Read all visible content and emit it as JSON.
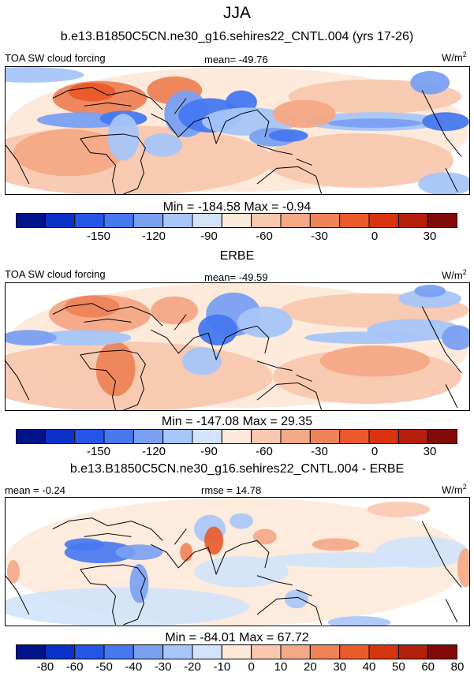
{
  "season": "JJA",
  "panels": [
    {
      "heading": "b.e13.B1850C5CN.ne30_g16.sehires22_CNTL.004 (yrs 17-26)",
      "left_label": "TOA SW cloud forcing",
      "center_label": "mean= -49.76",
      "units": "W/m",
      "units_sup": "2",
      "minmax": "Min = -184.58 Max =  -0.94"
    },
    {
      "heading": "ERBE",
      "left_label": "TOA SW cloud forcing",
      "center_label": "mean= -49.59",
      "units": "W/m",
      "units_sup": "2",
      "minmax": "Min = -147.08 Max =  29.35"
    },
    {
      "heading": "b.e13.B1850C5CN.ne30_g16.sehires22_CNTL.004 - ERBE",
      "left_label": "mean =  -0.24",
      "center_label": "rmse =  14.78",
      "units": "W/m",
      "units_sup": "2",
      "minmax": "Min = -84.01 Max =  67.72"
    }
  ],
  "chart_data": [
    {
      "type": "heatmap",
      "title": "TOA SW cloud forcing",
      "colorbar_colors": [
        "#00148c",
        "#0a32c8",
        "#2355e6",
        "#4678f0",
        "#7aa0f2",
        "#a7c5f8",
        "#d2e3fb",
        "#fde9d9",
        "#f9c8b0",
        "#f4a886",
        "#ee8358",
        "#ea5a2a",
        "#d8340f",
        "#b41f0c",
        "#820a08"
      ],
      "colorbar_tick_labels": [
        "-150",
        "-120",
        "-90",
        "-60",
        "-30",
        "0",
        "30"
      ],
      "colorbar_tick_values": [
        -150,
        -120,
        -90,
        -60,
        -30,
        0,
        30
      ],
      "colorbar_range": [
        -195,
        45
      ],
      "mean": -49.76,
      "min": -184.58,
      "max": -0.94,
      "units": "W/m2"
    },
    {
      "type": "heatmap",
      "title": "TOA SW cloud forcing",
      "colorbar_colors": [
        "#00148c",
        "#0a32c8",
        "#2355e6",
        "#4678f0",
        "#7aa0f2",
        "#a7c5f8",
        "#d2e3fb",
        "#fde9d9",
        "#f9c8b0",
        "#f4a886",
        "#ee8358",
        "#ea5a2a",
        "#d8340f",
        "#b41f0c",
        "#820a08"
      ],
      "colorbar_tick_labels": [
        "-150",
        "-120",
        "-90",
        "-60",
        "-30",
        "0",
        "30"
      ],
      "colorbar_tick_values": [
        -150,
        -120,
        -90,
        -60,
        -30,
        0,
        30
      ],
      "colorbar_range": [
        -195,
        45
      ],
      "mean": -49.59,
      "min": -147.08,
      "max": 29.35,
      "units": "W/m2"
    },
    {
      "type": "heatmap",
      "title": "",
      "colorbar_colors": [
        "#00148c",
        "#0a32c8",
        "#2355e6",
        "#4678f0",
        "#7aa0f2",
        "#a7c5f8",
        "#d2e3fb",
        "#fde9d9",
        "#f9c8b0",
        "#f4a886",
        "#ee8358",
        "#ea5a2a",
        "#d8340f",
        "#b41f0c",
        "#820a08"
      ],
      "colorbar_tick_labels": [
        "-80",
        "-60",
        "-50",
        "-40",
        "-30",
        "-20",
        "-10",
        "0",
        "10",
        "20",
        "30",
        "40",
        "50",
        "60",
        "80"
      ],
      "colorbar_tick_values": [
        -80,
        -60,
        -50,
        -40,
        -30,
        -20,
        -10,
        0,
        10,
        20,
        30,
        40,
        50,
        60,
        80
      ],
      "mean": -0.24,
      "rmse": 14.78,
      "min": -84.01,
      "max": 67.72,
      "units": "W/m2"
    }
  ]
}
